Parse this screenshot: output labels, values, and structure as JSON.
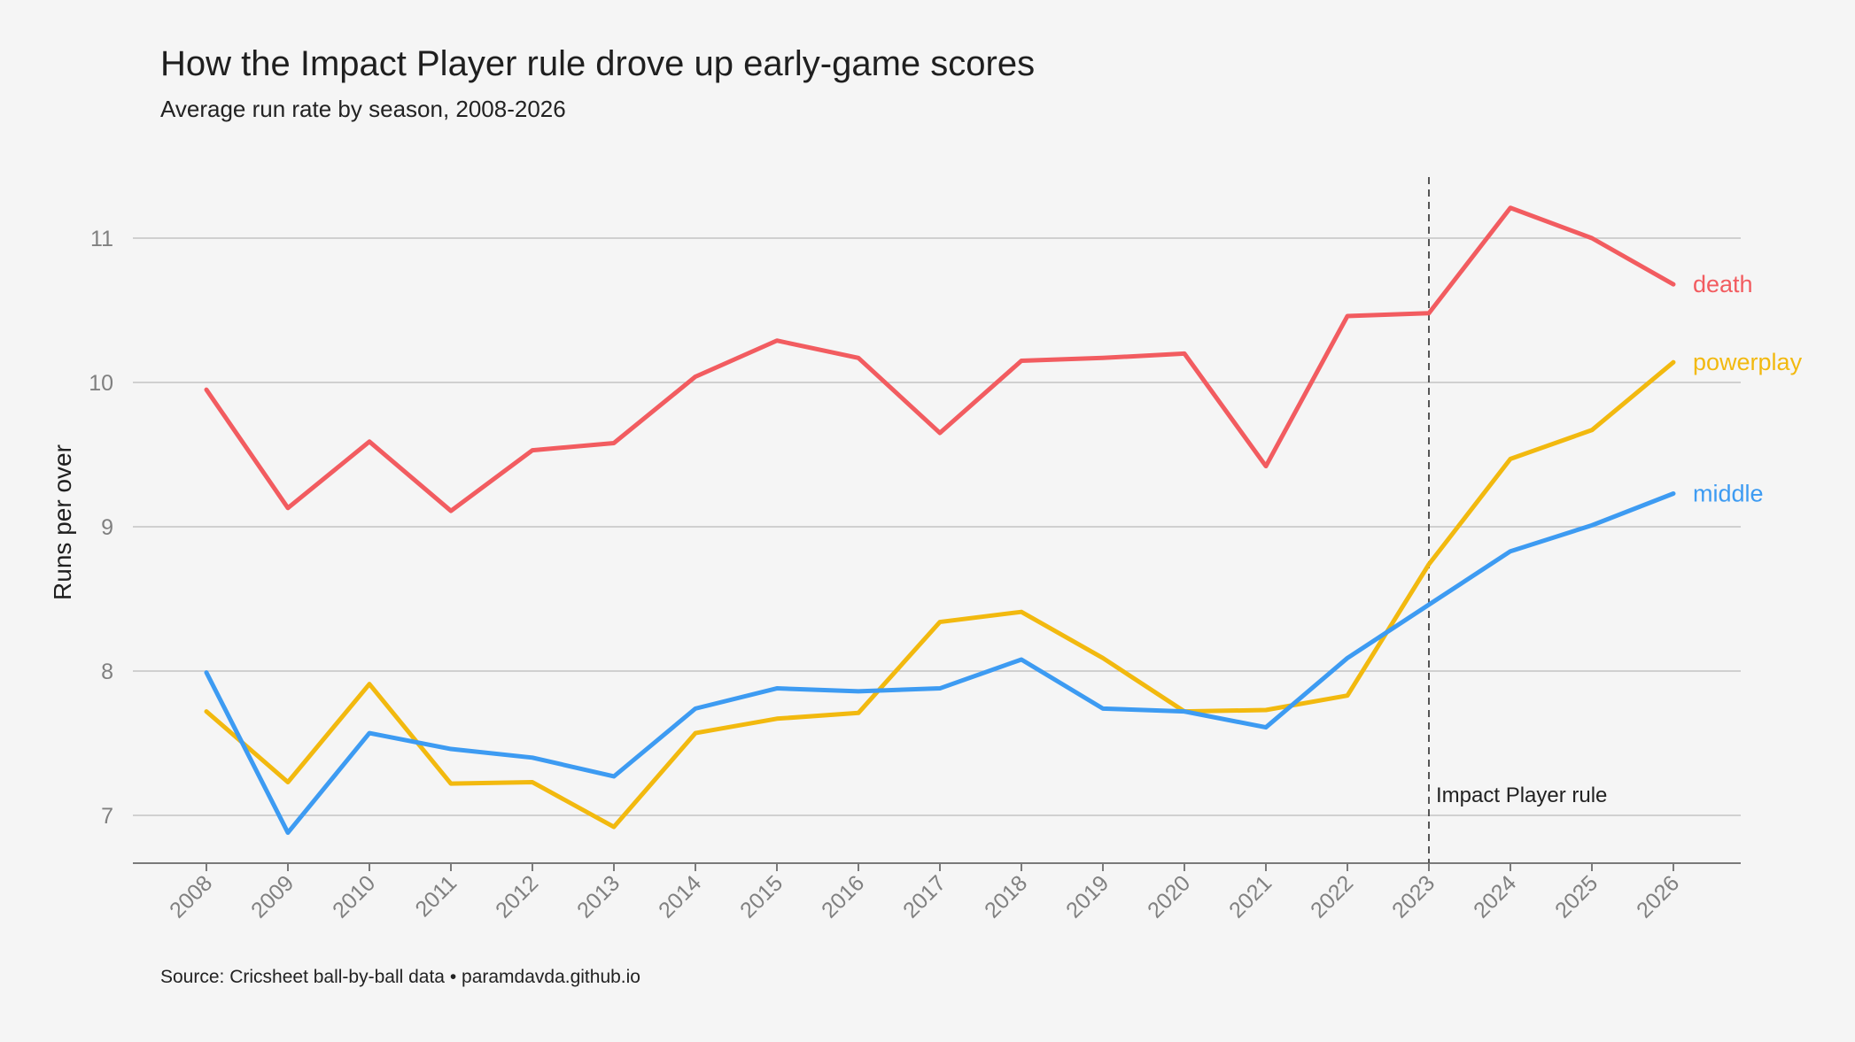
{
  "header": {
    "title": "How the Impact Player rule drove up early-game scores",
    "subtitle": "Average run rate by season, 2008-2026"
  },
  "footer": {
    "source": "Source: Cricsheet ball-by-ball data  •  paramdavda.github.io"
  },
  "chart_data": {
    "type": "line",
    "title": "How the Impact Player rule drove up early-game scores",
    "subtitle": "Average run rate by season, 2008-2026",
    "xlabel": "",
    "ylabel": "Runs per over",
    "x": [
      "2008",
      "2009",
      "2010",
      "2011",
      "2012",
      "2013",
      "2014",
      "2015",
      "2016",
      "2017",
      "2018",
      "2019",
      "2020",
      "2021",
      "2022",
      "2023",
      "2024",
      "2025",
      "2026"
    ],
    "ylim": [
      6.67,
      11.45
    ],
    "yticks": [
      7,
      8,
      9,
      10,
      11
    ],
    "grid": "horizontal",
    "legend": "direct labels at line ends (right)",
    "series": [
      {
        "name": "death",
        "color": "#f25c60",
        "values": [
          9.95,
          9.13,
          9.59,
          9.11,
          9.53,
          9.58,
          10.04,
          10.29,
          10.17,
          9.65,
          10.15,
          10.17,
          10.2,
          9.42,
          10.46,
          10.48,
          11.21,
          11.0,
          10.68
        ]
      },
      {
        "name": "powerplay",
        "color": "#f2b90f",
        "values": [
          7.72,
          7.23,
          7.91,
          7.22,
          7.23,
          6.92,
          7.57,
          7.67,
          7.71,
          8.34,
          8.41,
          8.09,
          7.72,
          7.73,
          7.83,
          8.74,
          9.47,
          9.67,
          10.14
        ]
      },
      {
        "name": "middle",
        "color": "#3d9bf2",
        "values": [
          7.99,
          6.88,
          7.57,
          7.46,
          7.4,
          7.27,
          7.74,
          7.88,
          7.86,
          7.88,
          8.08,
          7.74,
          7.72,
          7.61,
          8.09,
          8.46,
          8.83,
          9.01,
          9.23
        ]
      }
    ],
    "annotations": [
      {
        "type": "vline",
        "x": "2023",
        "label": "Impact Player rule",
        "style": "dashed"
      }
    ]
  }
}
